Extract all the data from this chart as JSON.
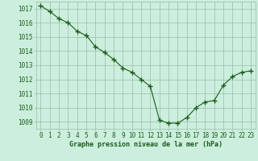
{
  "x": [
    0,
    1,
    2,
    3,
    4,
    5,
    6,
    7,
    8,
    9,
    10,
    11,
    12,
    13,
    14,
    15,
    16,
    17,
    18,
    19,
    20,
    21,
    22,
    23
  ],
  "y": [
    1017.2,
    1016.8,
    1016.3,
    1016.0,
    1015.4,
    1015.1,
    1014.3,
    1013.9,
    1013.4,
    1012.8,
    1012.5,
    1012.0,
    1011.5,
    1009.1,
    1008.9,
    1008.9,
    1009.3,
    1010.0,
    1010.4,
    1010.5,
    1011.6,
    1012.2,
    1012.5,
    1012.6
  ],
  "bg_color": "#cceedd",
  "line_color": "#1a5c1a",
  "grid_color": "#99bbaa",
  "xlabel": "Graphe pression niveau de la mer (hPa)",
  "xlabel_color": "#1a5c1a",
  "ylabel_ticks": [
    1009,
    1010,
    1011,
    1012,
    1013,
    1014,
    1015,
    1016,
    1017
  ],
  "ylim": [
    1008.5,
    1017.5
  ],
  "xlim": [
    -0.5,
    23.5
  ],
  "marker": "+",
  "linewidth": 0.8,
  "markersize": 4,
  "tick_fontsize": 5.5,
  "xlabel_fontsize": 6.0
}
